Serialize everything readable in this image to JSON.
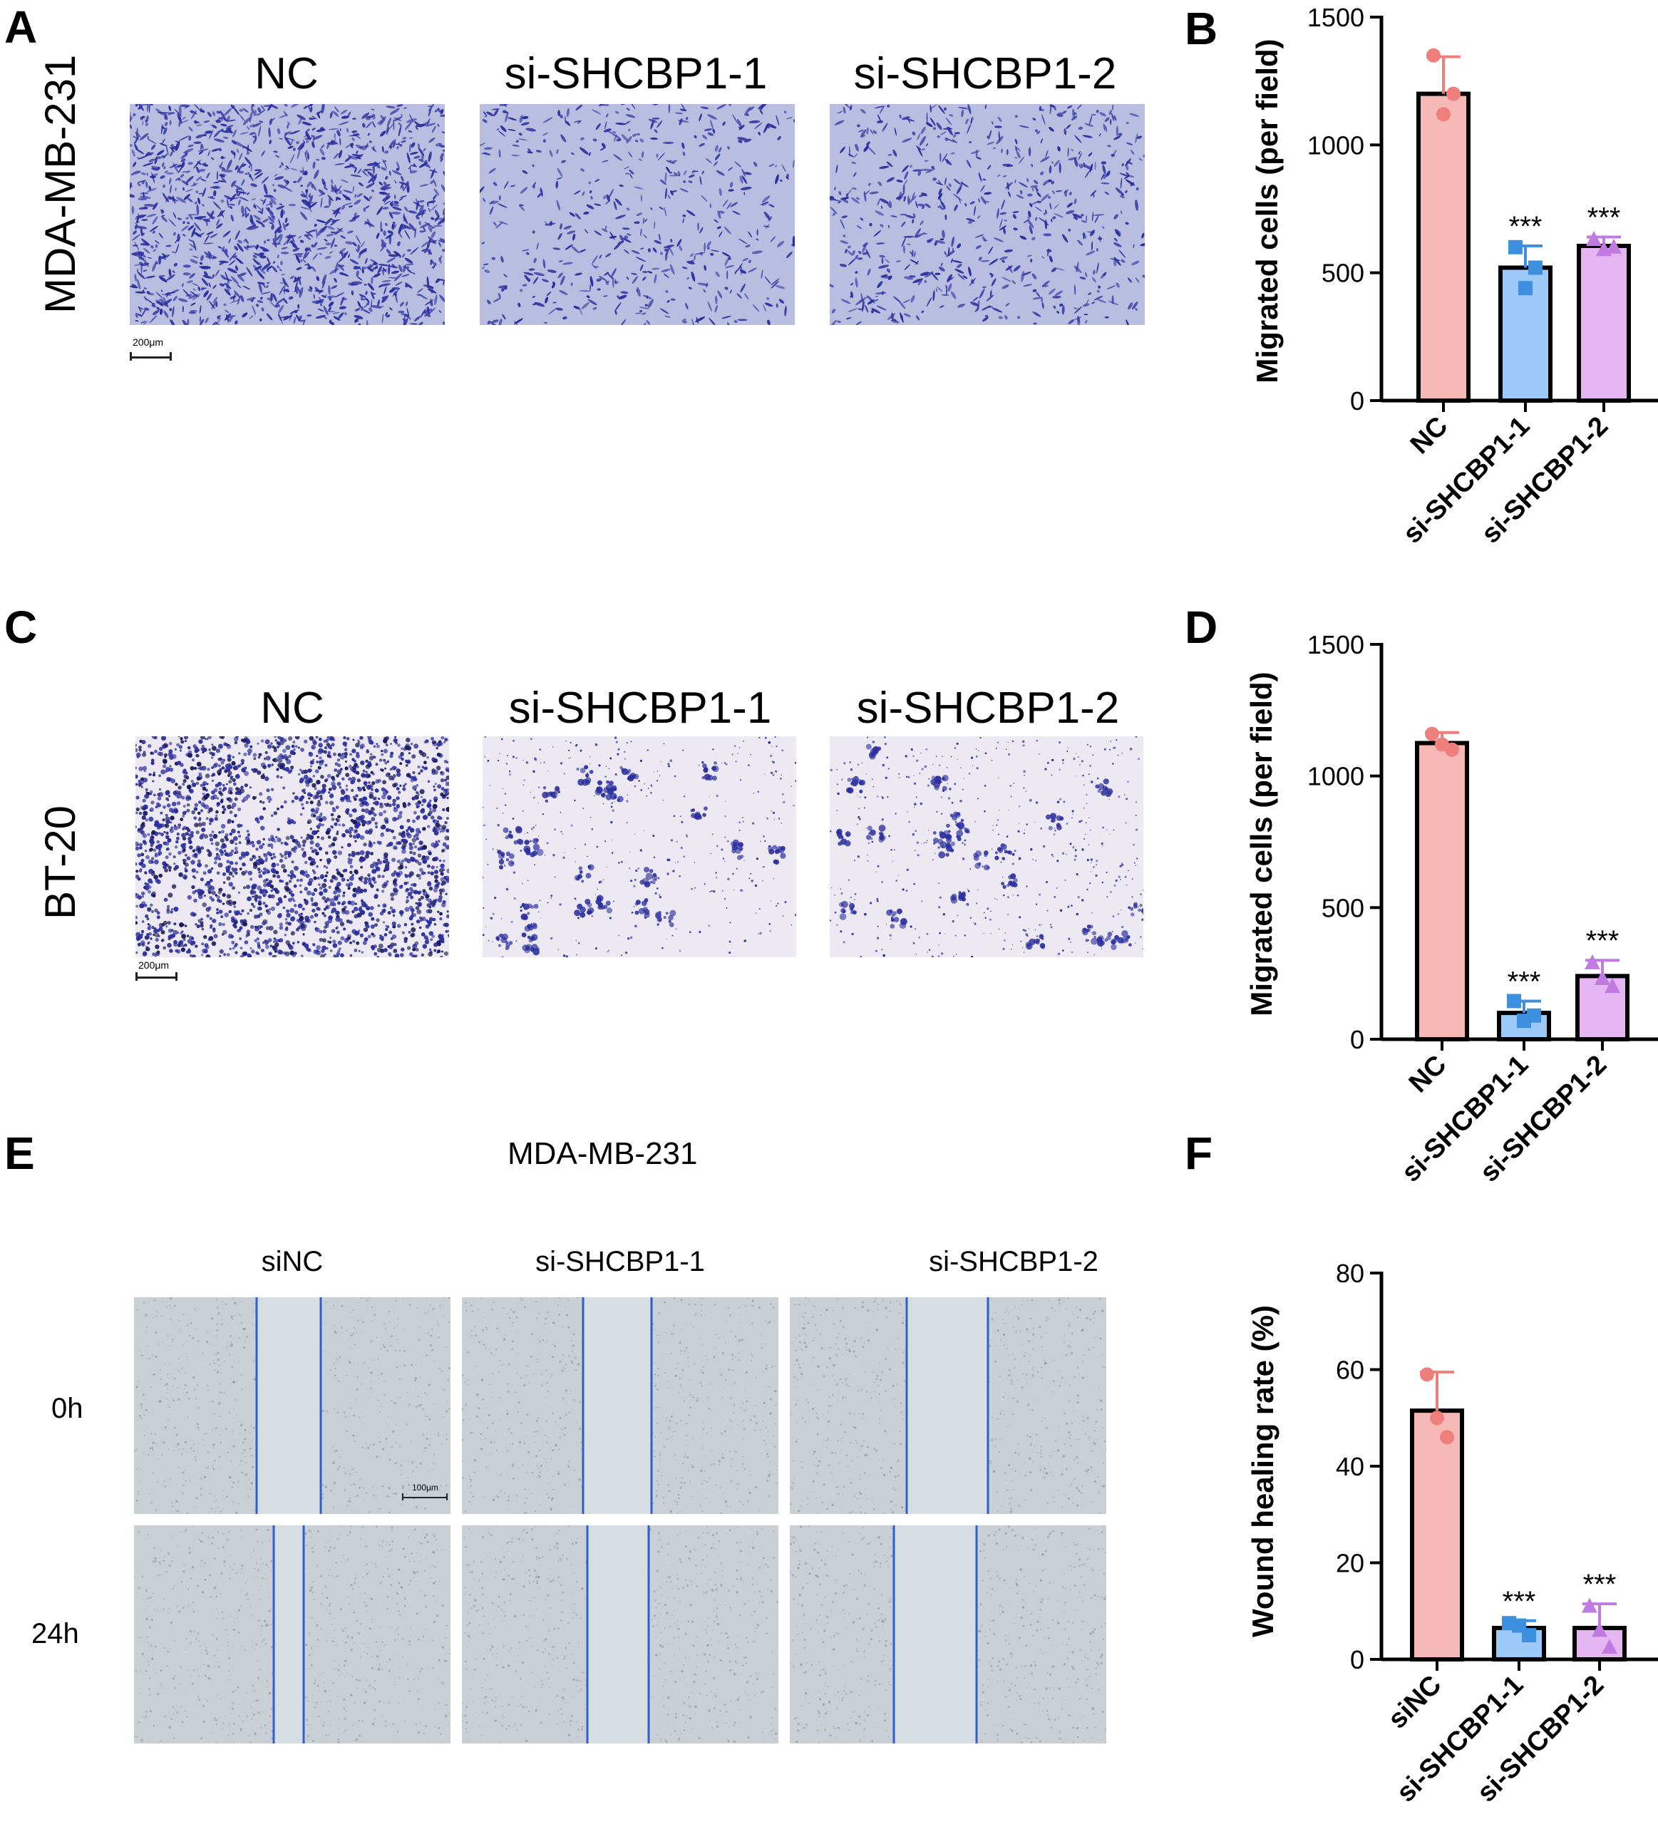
{
  "panels": {
    "A": {
      "letter": "A",
      "row_label": "MDA-MB-231",
      "columns": [
        "NC",
        "si-SHCBP1-1",
        "si-SHCBP1-2"
      ],
      "scale_bar": "200μm"
    },
    "C": {
      "letter": "C",
      "row_label": "BT-20",
      "columns": [
        "NC",
        "si-SHCBP1-1",
        "si-SHCBP1-2"
      ],
      "scale_bar": "200μm"
    },
    "E": {
      "letter": "E",
      "title": "MDA-MB-231",
      "columns": [
        "siNC",
        "si-SHCBP1-1",
        "si-SHCBP1-2"
      ],
      "rows": [
        "0h",
        "24h"
      ],
      "scale_bar": "100μm"
    },
    "B": {
      "letter": "B"
    },
    "D": {
      "letter": "D"
    },
    "F": {
      "letter": "F"
    }
  },
  "colors": {
    "stain_dark": "#2b2f9e",
    "stain_bg_A": "#b9bde0",
    "stain_bg_C": "#ece9f2",
    "wound_bg": "#c9cfd4",
    "wound_gap": "#d6dde3",
    "wound_line": "#2f5fc8",
    "bar_nc": "#f7b9b5",
    "bar_si1": "#9cc9f7",
    "bar_si2": "#e6b6f3",
    "dot_nc": "#ee7f7c",
    "dot_si1": "#3d8fe0",
    "dot_si2": "#c07ae0"
  },
  "chart_data": [
    {
      "id": "B",
      "type": "bar",
      "categories": [
        "NC",
        "si-SHCBP1-1",
        "si-SHCBP1-2"
      ],
      "values": [
        1200,
        520,
        605
      ],
      "errors": [
        145,
        85,
        35
      ],
      "points": [
        [
          1350,
          1120,
          1200
        ],
        [
          600,
          440,
          520
        ],
        [
          630,
          590,
          600
        ]
      ],
      "significance": [
        "",
        "***",
        "***"
      ],
      "ylabel": "Migrated cells (per field)",
      "ylim": [
        0,
        1500
      ],
      "yticks": [
        0,
        500,
        1000,
        1500
      ],
      "grid": false
    },
    {
      "id": "D",
      "type": "bar",
      "categories": [
        "NC",
        "si-SHCBP1-1",
        "si-SHCBP1-2"
      ],
      "values": [
        1125,
        100,
        240
      ],
      "errors": [
        40,
        45,
        60
      ],
      "points": [
        [
          1160,
          1120,
          1100
        ],
        [
          145,
          70,
          90
        ],
        [
          290,
          230,
          200
        ]
      ],
      "significance": [
        "",
        "***",
        "***"
      ],
      "ylabel": "Migrated cells (per field)",
      "ylim": [
        0,
        1500
      ],
      "yticks": [
        0,
        500,
        1000,
        1500
      ],
      "grid": false
    },
    {
      "id": "F",
      "type": "bar",
      "categories": [
        "siNC",
        "si-SHCBP1-1",
        "si-SHCBP1-2"
      ],
      "values": [
        51.5,
        6.5,
        6.5
      ],
      "errors": [
        8,
        1.5,
        5
      ],
      "points": [
        [
          59,
          50,
          46
        ],
        [
          7.5,
          7,
          5
        ],
        [
          11,
          6,
          2.5
        ]
      ],
      "significance": [
        "",
        "***",
        "***"
      ],
      "ylabel": "Wound healing rate (%)",
      "ylim": [
        0,
        80
      ],
      "yticks": [
        0,
        20,
        40,
        60,
        80
      ],
      "grid": false
    }
  ]
}
